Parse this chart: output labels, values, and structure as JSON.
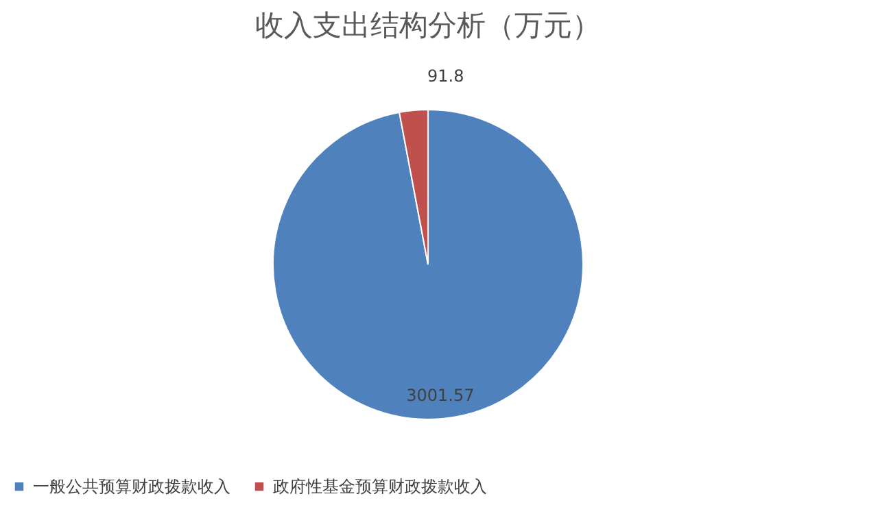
{
  "chart_data": {
    "type": "pie",
    "title": "收入支出结构分析（万元）",
    "categories": [
      "一般公共预算财政拨款收入",
      "政府性基金预算财政拨款收入"
    ],
    "values": [
      3001.57,
      91.8
    ],
    "colors": [
      "#4f81bd",
      "#c0504d"
    ],
    "data_labels": true,
    "legend": "bottom"
  }
}
